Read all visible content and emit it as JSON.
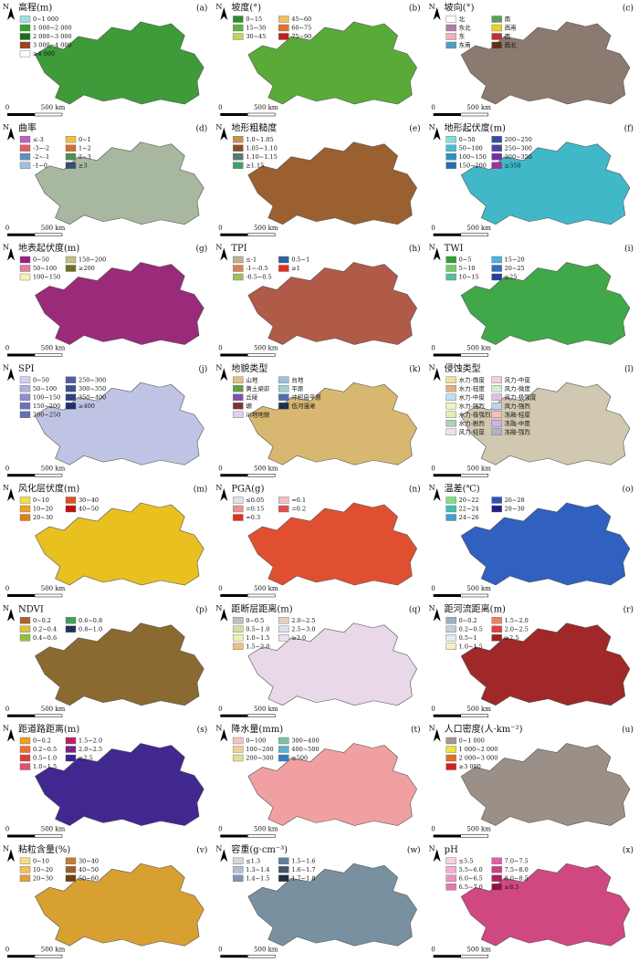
{
  "north": "N",
  "scale_bar": {
    "start": "0",
    "end": "500 km"
  },
  "panels": [
    {
      "letter": "(a)",
      "title": "高程(m)",
      "map_color": "#3f9a3a",
      "legend": [
        [
          {
            "label": "0~1 000",
            "color": "#9fe0e0"
          }
        ],
        [
          {
            "label": "1 000~2 000",
            "color": "#33a02c"
          }
        ],
        [
          {
            "label": "2 000~3 000",
            "color": "#1b6e1b"
          }
        ],
        [
          {
            "label": "3 000~4 000",
            "color": "#a0401e"
          }
        ],
        [
          {
            "label": "≥4 000",
            "color": "#ffffff"
          }
        ]
      ]
    },
    {
      "letter": "(b)",
      "title": "坡度(°)",
      "map_color": "#5aaa3a",
      "legend": [
        [
          {
            "label": "0~15",
            "color": "#2e8b2e"
          },
          {
            "label": "45~60",
            "color": "#f0c060"
          }
        ],
        [
          {
            "label": "15~30",
            "color": "#5fb43c"
          },
          {
            "label": "60~75",
            "color": "#e07030"
          }
        ],
        [
          {
            "label": "30~45",
            "color": "#b8d860"
          },
          {
            "label": "75~90",
            "color": "#c02020"
          }
        ]
      ]
    },
    {
      "letter": "(c)",
      "title": "坡向(°)",
      "map_color": "#8a7a70",
      "legend": [
        [
          {
            "label": "北",
            "color": "#ffffff"
          },
          {
            "label": "南",
            "color": "#5aa05a"
          }
        ],
        [
          {
            "label": "东北",
            "color": "#b07ab0"
          },
          {
            "label": "西南",
            "color": "#f0d020"
          }
        ],
        [
          {
            "label": "东",
            "color": "#f0b0c0"
          },
          {
            "label": "西",
            "color": "#c03030"
          }
        ],
        [
          {
            "label": "东南",
            "color": "#50a0c0"
          },
          {
            "label": "西北",
            "color": "#603010"
          }
        ]
      ]
    },
    {
      "letter": "(d)",
      "title": "曲率",
      "map_color": "#a8b8a0",
      "legend": [
        [
          {
            "label": "≤-3",
            "color": "#c060c0"
          },
          {
            "label": "0~1",
            "color": "#f0c040"
          }
        ],
        [
          {
            "label": "-3~-2",
            "color": "#e06060"
          },
          {
            "label": "1~2",
            "color": "#d07030"
          }
        ],
        [
          {
            "label": "-2~-1",
            "color": "#6090c0"
          },
          {
            "label": "2~3",
            "color": "#509050"
          }
        ],
        [
          {
            "label": "-1~0",
            "color": "#a0c0e0"
          },
          {
            "label": "≥3",
            "color": "#305070"
          }
        ]
      ]
    },
    {
      "letter": "(e)",
      "title": "地形粗糙度",
      "map_color": "#9a6030",
      "legend": [
        [
          {
            "label": "1.0~1.05",
            "color": "#c89050"
          }
        ],
        [
          {
            "label": "1.05~1.10",
            "color": "#8a5020"
          }
        ],
        [
          {
            "label": "1.10~1.15",
            "color": "#5a7a70"
          }
        ],
        [
          {
            "label": "≥1.15",
            "color": "#40a070"
          }
        ]
      ]
    },
    {
      "letter": "(f)",
      "title": "地形起伏度(m)",
      "map_color": "#40b8c8",
      "legend": [
        [
          {
            "label": "0~50",
            "color": "#80e0e0"
          },
          {
            "label": "200~250",
            "color": "#3050a0"
          }
        ],
        [
          {
            "label": "50~100",
            "color": "#40c0d0"
          },
          {
            "label": "250~300",
            "color": "#5040a0"
          }
        ],
        [
          {
            "label": "100~150",
            "color": "#3090c0"
          },
          {
            "label": "300~350",
            "color": "#7030a0"
          }
        ],
        [
          {
            "label": "150~200",
            "color": "#2070b0"
          },
          {
            "label": "≥350",
            "color": "#a030a0"
          }
        ]
      ]
    },
    {
      "letter": "(g)",
      "title": "地表起伏度(m)",
      "map_color": "#9a2a7a",
      "legend": [
        [
          {
            "label": "0~50",
            "color": "#a02080"
          },
          {
            "label": "150~200",
            "color": "#c0c080"
          }
        ],
        [
          {
            "label": "50~100",
            "color": "#e080a0"
          },
          {
            "label": "≥200",
            "color": "#707020"
          }
        ],
        [
          {
            "label": "100~150",
            "color": "#f8f0b0"
          }
        ]
      ]
    },
    {
      "letter": "(h)",
      "title": "TPI",
      "map_color": "#b05a48",
      "legend": [
        [
          {
            "label": "≤-1",
            "color": "#c0b090"
          },
          {
            "label": "0.5~1",
            "color": "#3060a0"
          }
        ],
        [
          {
            "label": "-1~-0.5",
            "color": "#e08050"
          },
          {
            "label": "≥1",
            "color": "#e03020"
          }
        ],
        [
          {
            "label": "-0.5~0.5",
            "color": "#a0c060"
          }
        ]
      ]
    },
    {
      "letter": "(i)",
      "title": "TWI",
      "map_color": "#40a848",
      "legend": [
        [
          {
            "label": "0~5",
            "color": "#30a030"
          },
          {
            "label": "15~20",
            "color": "#50b0e0"
          }
        ],
        [
          {
            "label": "5~10",
            "color": "#70d060"
          },
          {
            "label": "20~25",
            "color": "#3070c0"
          }
        ],
        [
          {
            "label": "10~15",
            "color": "#50c0a0"
          },
          {
            "label": "≥25",
            "color": "#2040a0"
          }
        ]
      ]
    },
    {
      "letter": "(j)",
      "title": "SPI",
      "map_color": "#c0c4e4",
      "legend": [
        [
          {
            "label": "0~50",
            "color": "#d0d0f0"
          },
          {
            "label": "250~300",
            "color": "#5060a0"
          }
        ],
        [
          {
            "label": "50~100",
            "color": "#b0b0e0"
          },
          {
            "label": "300~350",
            "color": "#405090"
          }
        ],
        [
          {
            "label": "100~150",
            "color": "#9090d0"
          },
          {
            "label": "350~400",
            "color": "#304080"
          }
        ],
        [
          {
            "label": "150~200",
            "color": "#7070c0"
          },
          {
            "label": "≥400",
            "color": "#203070"
          }
        ],
        [
          {
            "label": "200~250",
            "color": "#6070b0"
          }
        ]
      ]
    },
    {
      "letter": "(k)",
      "title": "地貌类型",
      "map_color": "#d8b870",
      "legend": [
        [
          {
            "label": "山地",
            "color": "#e0c080"
          },
          {
            "label": "台地",
            "color": "#a0c0e0"
          }
        ],
        [
          {
            "label": "黄土梁峁",
            "color": "#60a040"
          },
          {
            "label": "平原",
            "color": "#a0d0d0"
          }
        ],
        [
          {
            "label": "丘陵",
            "color": "#8050b0"
          },
          {
            "label": "冲积扇平原",
            "color": "#5070b0"
          }
        ],
        [
          {
            "label": "塬",
            "color": "#803040"
          },
          {
            "label": "低河漫滩",
            "color": "#203050"
          }
        ],
        [
          {
            "label": "川地地貌",
            "color": "#e0d0f0"
          }
        ]
      ]
    },
    {
      "letter": "(l)",
      "title": "侵蚀类型",
      "map_color": "#d0c8b0",
      "legend": [
        [
          {
            "label": "水力-微度",
            "color": "#f0e0a0"
          },
          {
            "label": "风力-中度",
            "color": "#f0d0e0"
          }
        ],
        [
          {
            "label": "水力-轻度",
            "color": "#e0b080"
          },
          {
            "label": "风力-微度",
            "color": "#d0f0d0"
          }
        ],
        [
          {
            "label": "水力-中度",
            "color": "#c0e0f0"
          },
          {
            "label": "风力-极强度",
            "color": "#e0c0e0"
          }
        ],
        [
          {
            "label": "水力-强烈",
            "color": "#f0f0c0"
          },
          {
            "label": "风力-强烈",
            "color": "#c0d0f0"
          }
        ],
        [
          {
            "label": "水力-极强烈",
            "color": "#e0f0b0"
          },
          {
            "label": "冻融-轻度",
            "color": "#f0c0c0"
          }
        ],
        [
          {
            "label": "水力-剧烈",
            "color": "#b0d0b0"
          },
          {
            "label": "冻融-中度",
            "color": "#d0b0f0"
          }
        ],
        [
          {
            "label": "风力-轻度",
            "color": "#f0e0f0"
          },
          {
            "label": "冻融-强烈",
            "color": "#b0b0d0"
          }
        ]
      ]
    },
    {
      "letter": "(m)",
      "title": "风化层伏度(m)",
      "map_color": "#e8c020",
      "legend": [
        [
          {
            "label": "0~10",
            "color": "#f0e040"
          },
          {
            "label": "30~40",
            "color": "#e05020"
          }
        ],
        [
          {
            "label": "10~20",
            "color": "#f0a020"
          },
          {
            "label": "40~50",
            "color": "#c01010"
          }
        ],
        [
          {
            "label": "20~30",
            "color": "#e08020"
          }
        ]
      ]
    },
    {
      "letter": "(n)",
      "title": "PGA(g)",
      "map_color": "#e05030",
      "legend": [
        [
          {
            "label": "≤0.05",
            "color": "#e0e0e0"
          },
          {
            "label": "=0.1",
            "color": "#f0c0c0"
          }
        ],
        [
          {
            "label": "=0.15",
            "color": "#f09090"
          },
          {
            "label": "=0.2",
            "color": "#e05050"
          }
        ],
        [
          {
            "label": "=0.3",
            "color": "#e03020"
          }
        ]
      ]
    },
    {
      "letter": "(o)",
      "title": "温差(℃)",
      "map_color": "#3060c0",
      "legend": [
        [
          {
            "label": "20~22",
            "color": "#80e080"
          },
          {
            "label": "26~28",
            "color": "#3050c0"
          }
        ],
        [
          {
            "label": "22~24",
            "color": "#40c0b0"
          },
          {
            "label": "28~30",
            "color": "#202080"
          }
        ],
        [
          {
            "label": "24~26",
            "color": "#40a0d0"
          }
        ]
      ]
    },
    {
      "letter": "(p)",
      "title": "NDVI",
      "map_color": "#8a6a30",
      "legend": [
        [
          {
            "label": "0~0.2",
            "color": "#b06030"
          },
          {
            "label": "0.6~0.8",
            "color": "#40a060"
          }
        ],
        [
          {
            "label": "0.2~0.4",
            "color": "#e0c040"
          },
          {
            "label": "0.8~1.0",
            "color": "#203060"
          }
        ],
        [
          {
            "label": "0.4~0.6",
            "color": "#90c040"
          }
        ]
      ]
    },
    {
      "letter": "(q)",
      "title": "距断层距离(m)",
      "map_color": "#e8d8e8",
      "legend": [
        [
          {
            "label": "0~0.5",
            "color": "#c0c0c0"
          },
          {
            "label": "2.0~2.5",
            "color": "#e0d0c0"
          }
        ],
        [
          {
            "label": "0.5~1.0",
            "color": "#d0e0a0"
          },
          {
            "label": "2.5~3.0",
            "color": "#e0e0f0"
          }
        ],
        [
          {
            "label": "1.0~1.5",
            "color": "#f0f0b0"
          },
          {
            "label": "≥3.0",
            "color": "#f0e0f0"
          }
        ],
        [
          {
            "label": "1.5~2.0",
            "color": "#f0c080"
          }
        ]
      ]
    },
    {
      "letter": "(r)",
      "title": "距河流距离(m)",
      "map_color": "#a02828",
      "legend": [
        [
          {
            "label": "0~0.2",
            "color": "#a0b0c0"
          },
          {
            "label": "1.5~2.0",
            "color": "#f08060"
          }
        ],
        [
          {
            "label": "0.2~0.5",
            "color": "#c0d0e0"
          },
          {
            "label": "2.0~2.5",
            "color": "#e04040"
          }
        ],
        [
          {
            "label": "0.5~1",
            "color": "#e0f0f0"
          },
          {
            "label": "≥2.5",
            "color": "#a02020"
          }
        ],
        [
          {
            "label": "1.0~1.5",
            "color": "#f8f0c0"
          }
        ]
      ]
    },
    {
      "letter": "(s)",
      "title": "距道路距离(m)",
      "map_color": "#402890",
      "legend": [
        [
          {
            "label": "0~0.2",
            "color": "#f0a020"
          },
          {
            "label": "1.5~2.0",
            "color": "#c02060"
          }
        ],
        [
          {
            "label": "0.2~0.5",
            "color": "#f07030"
          },
          {
            "label": "2.0~2.5",
            "color": "#802080"
          }
        ],
        [
          {
            "label": "0.5~1.0",
            "color": "#e04030"
          },
          {
            "label": "≥2.5",
            "color": "#402090"
          }
        ],
        [
          {
            "label": "1.0~1.5",
            "color": "#e05070"
          }
        ]
      ]
    },
    {
      "letter": "(t)",
      "title": "降水量(mm)",
      "map_color": "#f0a0a0",
      "legend": [
        [
          {
            "label": "0~100",
            "color": "#f8c0c0"
          },
          {
            "label": "300~400",
            "color": "#80c0a0"
          }
        ],
        [
          {
            "label": "100~200",
            "color": "#f0d0a0"
          },
          {
            "label": "400~500",
            "color": "#60b0d0"
          }
        ],
        [
          {
            "label": "200~300",
            "color": "#e0e090"
          },
          {
            "label": "≥500",
            "color": "#3080c0"
          }
        ]
      ]
    },
    {
      "letter": "(u)",
      "title": "人口密度(人·km⁻²)",
      "map_color": "#9a9088",
      "legend": [
        [
          {
            "label": "0~1 000",
            "color": "#a09890"
          }
        ],
        [
          {
            "label": "1 000~2 000",
            "color": "#f0e040"
          }
        ],
        [
          {
            "label": "2 000~3 000",
            "color": "#e07020"
          }
        ],
        [
          {
            "label": "≥3 000",
            "color": "#d02020"
          }
        ]
      ]
    },
    {
      "letter": "(v)",
      "title": "粘粒含量(%)",
      "map_color": "#d8a030",
      "legend": [
        [
          {
            "label": "0~10",
            "color": "#f0e080"
          },
          {
            "label": "30~40",
            "color": "#c08030"
          }
        ],
        [
          {
            "label": "10~20",
            "color": "#f0c060"
          },
          {
            "label": "40~50",
            "color": "#a06020"
          }
        ],
        [
          {
            "label": "20~30",
            "color": "#e0a040"
          },
          {
            "label": "50~60",
            "color": "#704010"
          }
        ]
      ]
    },
    {
      "letter": "(w)",
      "title": "容重(g·cm⁻³)",
      "map_color": "#7890a0",
      "legend": [
        [
          {
            "label": "≤1.3",
            "color": "#d0d8e0"
          },
          {
            "label": "1.5~1.6",
            "color": "#6080a0"
          }
        ],
        [
          {
            "label": "1.3~1.4",
            "color": "#b0c0d0"
          },
          {
            "label": "1.6~1.7",
            "color": "#405870"
          }
        ],
        [
          {
            "label": "1.4~1.5",
            "color": "#8098b0"
          },
          {
            "label": "1.7~1.8",
            "color": "#203040"
          }
        ]
      ]
    },
    {
      "letter": "(x)",
      "title": "pH",
      "map_color": "#d04880",
      "legend": [
        [
          {
            "label": "≤5.5",
            "color": "#f8d0e0"
          },
          {
            "label": "7.0~7.5",
            "color": "#e060a0"
          }
        ],
        [
          {
            "label": "5.5~6.0",
            "color": "#f0b0d0"
          },
          {
            "label": "7.5~8.0",
            "color": "#d04080"
          }
        ],
        [
          {
            "label": "6.0~6.5",
            "color": "#f090c0"
          },
          {
            "label": "8.0~8.5",
            "color": "#b02060"
          }
        ],
        [
          {
            "label": "6.5~7.0",
            "color": "#e878b0"
          },
          {
            "label": "≥8.5",
            "color": "#901040"
          }
        ]
      ]
    }
  ]
}
